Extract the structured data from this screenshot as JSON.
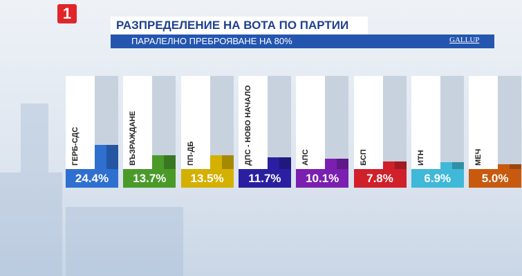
{
  "logo": "1",
  "source": "GALLUP",
  "chart_data": {
    "type": "bar",
    "title": "РАЗПРЕДЕЛЕНИЕ НА ВОТА ПО ПАРТИИ",
    "subtitle": "ПАРАЛЕЛНО ПРЕБРОЯВАНЕ НА 80%",
    "categories": [
      "ГЕРБ-СДС",
      "ВЪЗРАЖДАНЕ",
      "ПП-ДБ",
      "ДПС - НОВО НАЧАЛО",
      "АПС",
      "БСП",
      "ИТН",
      "МЕЧ"
    ],
    "values": [
      24.4,
      13.7,
      13.5,
      11.7,
      10.1,
      7.8,
      6.9,
      5.0
    ],
    "value_labels": [
      "24.4%",
      "13.7%",
      "13.5%",
      "11.7%",
      "10.1%",
      "7.8%",
      "6.9%",
      "5.0%"
    ],
    "colors": [
      "#2f6fd0",
      "#4a9a2a",
      "#d4b000",
      "#2a1fa0",
      "#7a1fb0",
      "#d0202a",
      "#40b8d8",
      "#c85a10"
    ]
  }
}
